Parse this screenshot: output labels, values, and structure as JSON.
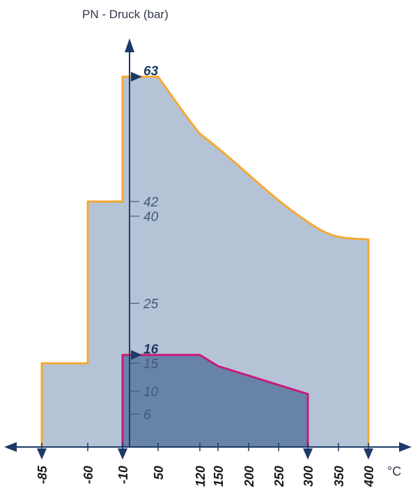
{
  "chart_data": {
    "type": "area",
    "title": "",
    "ylabel": "PN - Druck (bar)",
    "xunit": "°C",
    "x_ticks": [
      -85,
      -60,
      -10,
      50,
      120,
      150,
      200,
      250,
      300,
      350,
      400
    ],
    "y_ticks": [
      6,
      10,
      15,
      25,
      40,
      42
    ],
    "y_ticks_highlight": [
      16,
      63
    ],
    "x_arrow_ticks": [
      -85,
      -10,
      300,
      400
    ],
    "series": [
      {
        "x": [
          -85,
          -85,
          -60,
          -60,
          -10,
          -10,
          50,
          120,
          300,
          400,
          400
        ],
        "y": [
          0,
          15,
          15,
          42,
          42,
          63,
          63,
          52,
          39,
          36,
          0
        ]
      },
      {
        "x": [
          -10,
          -10,
          120,
          150,
          300,
          300
        ],
        "y": [
          0,
          16,
          16,
          14.5,
          9.5,
          0
        ]
      }
    ],
    "colors": {
      "outer_fill": "#b5c3d6",
      "outer_stroke": "#f6a833",
      "inner_fill": "#6783a8",
      "inner_stroke": "#c8197a",
      "axis": "#1d3a66"
    }
  }
}
